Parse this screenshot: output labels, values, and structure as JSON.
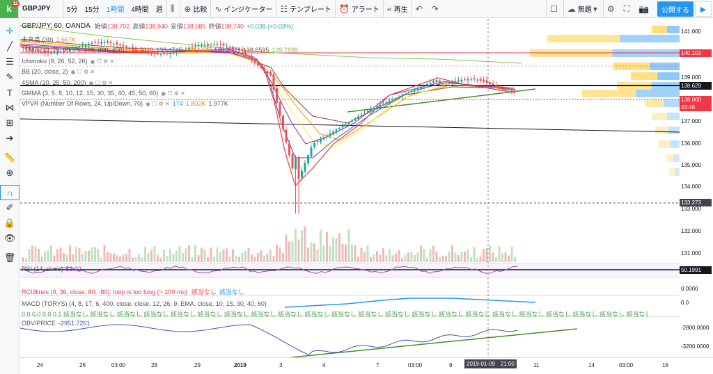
{
  "toolbar": {
    "symbol": "GBPJPY",
    "badge": "11",
    "intervals": [
      "5分",
      "15分",
      "1時間",
      "4時間",
      "週"
    ],
    "active_interval": 2,
    "compare": "比較",
    "indicators": "インジケーター",
    "templates": "テンプレート",
    "alert": "アラート",
    "replay": "再生",
    "unnamed": "無題",
    "publish": "公開する"
  },
  "legend": {
    "main": "GBP/JPY, 60, OANDA",
    "open_label": "始値",
    "open": "138.702",
    "high_label": "高値",
    "high": "138.940",
    "low_label": "安値",
    "low": "138.585",
    "close_label": "終値",
    "close": "138.740",
    "change": "+0.038 (+0.03%)",
    "ind1": "未来高 (30)",
    "ind1_val": "1.667K",
    "ind2": "7EMA (10, 25, 50, 75, 100, 200, 400)",
    "ind2_vals": [
      "138.7020",
      "138.4745",
      "138.1407",
      "138.3003",
      "138.6595",
      "139.7898"
    ],
    "ind3": "Ichimoku (9, 26, 52, 26)",
    "ind4": "BB (20, close, 2)",
    "ind5": "4SMA (10, 25, 50, 200)",
    "ind6": "GMMA (3, 5, 8, 10, 12, 15, 30, 35, 40, 45, 50, 60)",
    "ind7": "VPVR (Number Of Rows, 24, Up/Down, 70)",
    "ind7_vals": [
      "174",
      "1.802K",
      "1.977K"
    ],
    "rsi": "RSI (14, close)",
    "rsi_val": "53.02",
    "rci": "RCI3lines (9, 36, close, 80, -80): loop is too long (> 100 ms)",
    "rci_vals": [
      "該当なし",
      "該当なし"
    ],
    "macd": "MACD (TORYS) (4, 8, 17, 6, 400, close, close, 12, 26, 9, EMA, close, 10, 15, 30, 40, 60)",
    "macd_vals": "0.0 0.0 0.0 0.1 該当なし 該当なし 該当なし 該当なし 該当なし 該当なし 該当なし 該当なし 該当なし 該当なし 該当なし 該当なし 該当なし 該当なし 該当なし 該当なし 該当なし 該当なし 該当なし 該当なし 該当なし 該当なし 該当なし 該当なし 該当なし 該当なし 該当なし 該当なし 該当なし",
    "obv": "OBV/PRICE",
    "obv_val": "-2951.7261"
  },
  "price_axis": {
    "labels": [
      "141.000",
      "139.000",
      "137.000",
      "136.000",
      "135.000",
      "134.000",
      "133.000",
      "132.000",
      "131.000"
    ],
    "tags": [
      {
        "text": "140.103",
        "color": "#f23645"
      },
      {
        "text": "138.629",
        "color": "#131722"
      },
      {
        "text": "138.000",
        "color": "#f23645"
      },
      {
        "text": "43:48",
        "color": "#f23645"
      },
      {
        "text": "133.273",
        "color": "#434651"
      },
      {
        "text": "50.1991",
        "color": "#131722"
      }
    ],
    "sub_labels": [
      "0.0000",
      "0.0",
      "-2800.0000",
      "-3200.0000"
    ]
  },
  "time_axis": {
    "labels": [
      "24",
      "26",
      "03:00",
      "28",
      "29",
      "2019",
      "3",
      "4",
      "7",
      "03:00",
      "9",
      "11",
      "14",
      "03:00",
      "16"
    ],
    "cursor": "2019-01-09　21:00"
  },
  "colors": {
    "accent": "#2196f3",
    "up": "#26a69a",
    "down": "#ef5350"
  }
}
